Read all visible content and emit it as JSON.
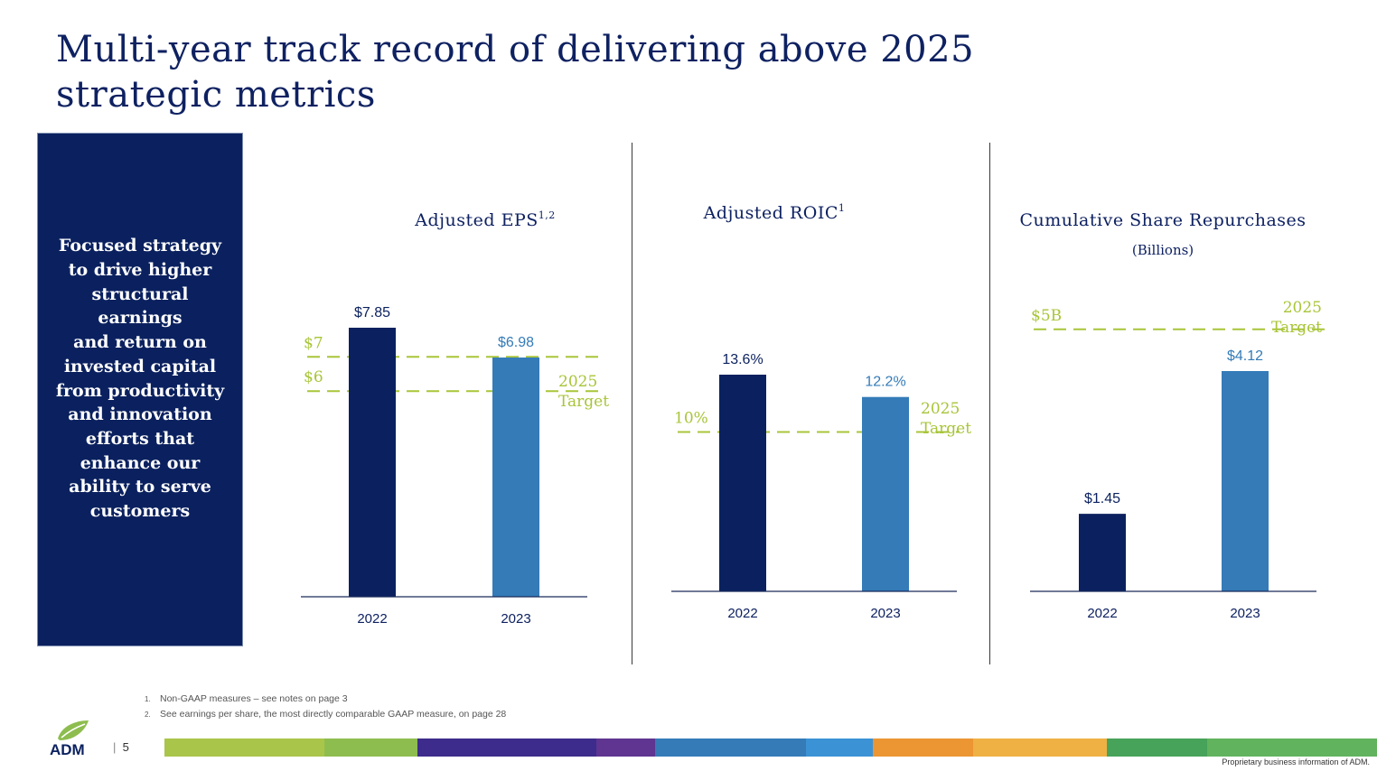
{
  "title": "Multi-year track record of delivering above 2025 strategic metrics",
  "sidebar_text": "Focused strategy\nto drive higher\nstructural\nearnings\nand  return on\ninvested capital\nfrom productivity\nand innovation\nefforts that\nenhance our\nability to serve\ncustomers",
  "colors": {
    "navy": "#0b215f",
    "blue": "#347bb8",
    "green": "#a8c539"
  },
  "chart_data": [
    {
      "type": "bar",
      "title": "Adjusted EPS",
      "title_sup": "1,2",
      "subtitle": "",
      "categories": [
        "2022",
        "2023"
      ],
      "values": [
        7.85,
        6.98
      ],
      "value_labels": [
        "$7.85",
        "$6.98"
      ],
      "ylim": [
        0,
        7.85
      ],
      "targets": [
        {
          "value": 7,
          "label": "$7"
        },
        {
          "value": 6,
          "label": "$6"
        }
      ],
      "target_note": [
        "2025",
        "Target"
      ]
    },
    {
      "type": "bar",
      "title": "Adjusted ROIC",
      "title_sup": "1",
      "subtitle": "",
      "categories": [
        "2022",
        "2023"
      ],
      "values": [
        13.6,
        12.2
      ],
      "value_labels": [
        "13.6%",
        "12.2%"
      ],
      "ylim": [
        0,
        13.6
      ],
      "targets": [
        {
          "value": 10,
          "label": "10%"
        }
      ],
      "target_note": [
        "2025",
        "Target"
      ]
    },
    {
      "type": "bar",
      "title": "Cumulative Share Repurchases",
      "title_sup": "",
      "subtitle": "(Billions)",
      "categories": [
        "2022",
        "2023"
      ],
      "values": [
        1.45,
        4.12
      ],
      "value_labels": [
        "$1.45",
        "$4.12"
      ],
      "ylim": [
        0,
        4.12
      ],
      "targets": [
        {
          "value": 4.9,
          "label": "$5B"
        }
      ],
      "target_note": [
        "2025",
        "Target"
      ]
    }
  ],
  "footnotes": [
    {
      "num": "1.",
      "text": "Non-GAAP measures – see notes on page 3"
    },
    {
      "num": "2.",
      "text": "See earnings per share, the most directly comparable GAAP measure, on page 28"
    }
  ],
  "logo_text": "ADM",
  "page_number": "5",
  "proprietary": "Proprietary business information of ADM.",
  "stripe_colors": [
    "#a9c54a",
    "#8ebd4f",
    "#3d2c8b",
    "#5f3591",
    "#347bb8",
    "#3b93d6",
    "#ec9533",
    "#efb143",
    "#47a35a",
    "#62b35e"
  ]
}
